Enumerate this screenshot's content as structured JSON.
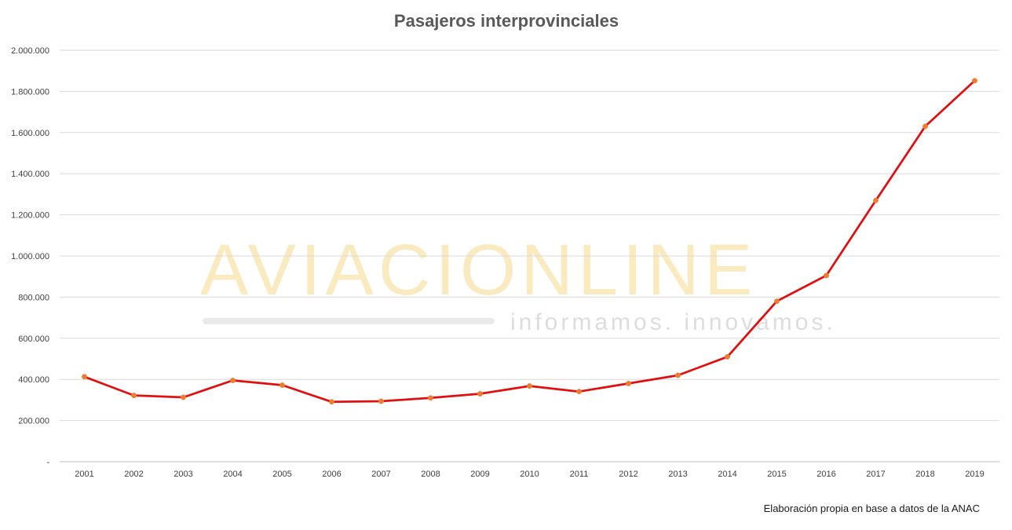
{
  "chart_data": {
    "type": "line",
    "title": "Pasajeros interprovinciales",
    "xlabel": "",
    "ylabel": "",
    "categories": [
      "2001",
      "2002",
      "2003",
      "2004",
      "2005",
      "2006",
      "2007",
      "2008",
      "2009",
      "2010",
      "2011",
      "2012",
      "2013",
      "2014",
      "2015",
      "2016",
      "2017",
      "2018",
      "2019"
    ],
    "series": [
      {
        "values": [
          413000,
          322000,
          313000,
          395000,
          372000,
          291000,
          294000,
          310000,
          330000,
          368000,
          341000,
          380000,
          420000,
          510000,
          780000,
          905000,
          1270000,
          1630000,
          1852000
        ]
      }
    ],
    "ylim": [
      0,
      2000000
    ],
    "yticks": [
      {
        "value": 0,
        "label": "-"
      },
      {
        "value": 200000,
        "label": "200.000"
      },
      {
        "value": 400000,
        "label": "400.000"
      },
      {
        "value": 600000,
        "label": "600.000"
      },
      {
        "value": 800000,
        "label": "800.000"
      },
      {
        "value": 1000000,
        "label": "1.000.000"
      },
      {
        "value": 1200000,
        "label": "1.200.000"
      },
      {
        "value": 1400000,
        "label": "1.400.000"
      },
      {
        "value": 1600000,
        "label": "1.600.000"
      },
      {
        "value": 1800000,
        "label": "1.800.000"
      },
      {
        "value": 2000000,
        "label": "2.000.000"
      }
    ],
    "grid": true,
    "legend": "none",
    "colors": {
      "line": "#e01010",
      "marker": "#ed7d31",
      "grid": "#d9d9d9",
      "axis": "#bfbfbf"
    },
    "source_note": "Elaboración propia en base a datos de la ANAC"
  },
  "watermark": {
    "main": "AVIACIONLINE",
    "sub": "informamos. innovamos."
  }
}
